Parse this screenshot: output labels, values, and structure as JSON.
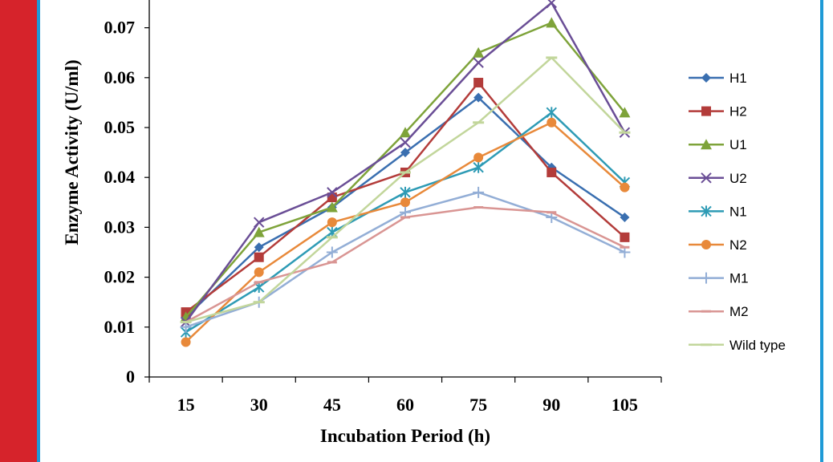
{
  "chart_data": {
    "type": "line",
    "title": "",
    "xlabel": "Incubation Period (h)",
    "ylabel": "Enzyme Activity (U/ml)",
    "categories": [
      "15",
      "30",
      "45",
      "60",
      "75",
      "90",
      "105"
    ],
    "y_ticks": [
      "0",
      "0.01",
      "0.02",
      "0.03",
      "0.04",
      "0.05",
      "0.06",
      "0.07"
    ],
    "ylim": [
      0,
      0.075
    ],
    "grid": false,
    "legend_position": "right",
    "series": [
      {
        "name": "H1",
        "color": "#3a6fb0",
        "marker": "diamond",
        "values": [
          0.012,
          0.026,
          0.034,
          0.045,
          0.056,
          0.042,
          0.032
        ]
      },
      {
        "name": "H2",
        "color": "#b33c3a",
        "marker": "square",
        "values": [
          0.013,
          0.024,
          0.036,
          0.041,
          0.059,
          0.041,
          0.028
        ]
      },
      {
        "name": "U1",
        "color": "#7ea33a",
        "marker": "triangle",
        "values": [
          0.012,
          0.029,
          0.034,
          0.049,
          0.065,
          0.071,
          0.053
        ]
      },
      {
        "name": "U2",
        "color": "#6a4e96",
        "marker": "x",
        "values": [
          0.011,
          0.031,
          0.037,
          0.047,
          0.063,
          0.075,
          0.049
        ]
      },
      {
        "name": "N1",
        "color": "#2e9bb5",
        "marker": "star",
        "values": [
          0.009,
          0.018,
          0.029,
          0.037,
          0.042,
          0.053,
          0.039
        ]
      },
      {
        "name": "N2",
        "color": "#e8893a",
        "marker": "circle",
        "values": [
          0.007,
          0.021,
          0.031,
          0.035,
          0.044,
          0.051,
          0.038
        ]
      },
      {
        "name": "M1",
        "color": "#93aed6",
        "marker": "plus",
        "values": [
          0.01,
          0.015,
          0.025,
          0.033,
          0.037,
          0.032,
          0.025
        ]
      },
      {
        "name": "M2",
        "color": "#d99593",
        "marker": "dash",
        "values": [
          0.011,
          0.019,
          0.023,
          0.032,
          0.034,
          0.033,
          0.026
        ]
      },
      {
        "name": "Wild type",
        "color": "#c2d69b",
        "marker": "bar",
        "values": [
          0.011,
          0.015,
          0.028,
          0.041,
          0.051,
          0.064,
          0.049
        ]
      }
    ]
  }
}
